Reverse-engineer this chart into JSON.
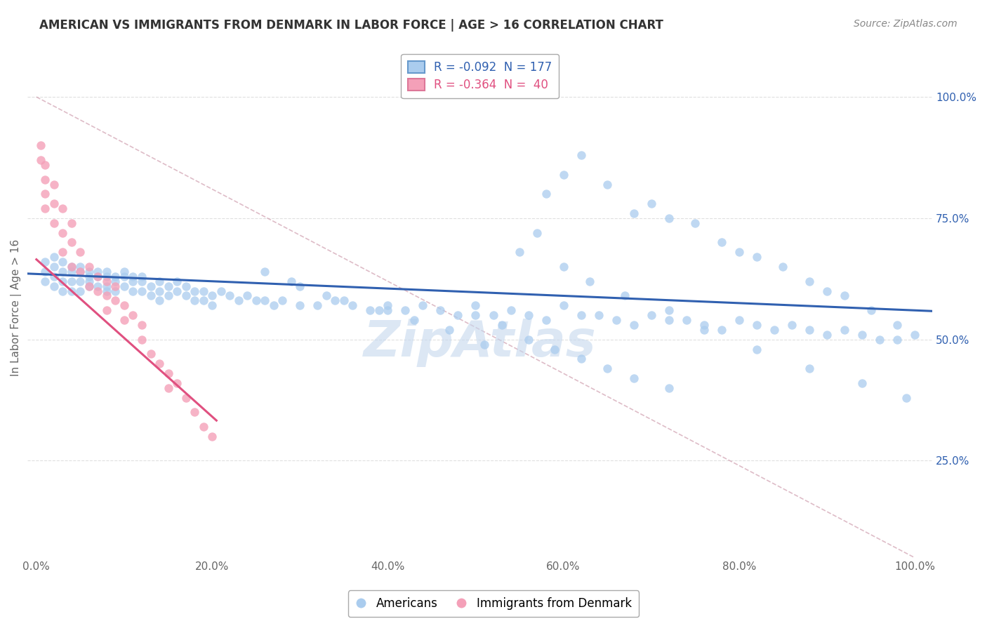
{
  "title": "AMERICAN VS IMMIGRANTS FROM DENMARK IN LABOR FORCE | AGE > 16 CORRELATION CHART",
  "source": "Source: ZipAtlas.com",
  "ylabel_label": "In Labor Force | Age > 16",
  "x_tick_labels": [
    "0.0%",
    "20.0%",
    "40.0%",
    "60.0%",
    "80.0%",
    "100.0%"
  ],
  "x_tick_values": [
    0.0,
    0.2,
    0.4,
    0.6,
    0.8,
    1.0
  ],
  "y_tick_labels": [
    "25.0%",
    "50.0%",
    "75.0%",
    "100.0%"
  ],
  "y_tick_values": [
    0.25,
    0.5,
    0.75,
    1.0
  ],
  "xlim": [
    -0.01,
    1.02
  ],
  "ylim": [
    0.05,
    1.08
  ],
  "blue_color": "#aaccee",
  "pink_color": "#f4a0b8",
  "blue_line_color": "#3060b0",
  "pink_line_color": "#e05080",
  "title_color": "#333333",
  "source_color": "#888888",
  "watermark_color": "#c5d8ee",
  "grid_color": "#dddddd",
  "diag_color": "#d0a0b0",
  "blue_intercept": 0.635,
  "blue_slope": -0.075,
  "pink_intercept": 0.665,
  "pink_slope": -1.62,
  "pink_line_x_start": 0.0,
  "pink_line_x_end": 0.205,
  "blue_scatter_x": [
    0.01,
    0.01,
    0.01,
    0.02,
    0.02,
    0.02,
    0.02,
    0.03,
    0.03,
    0.03,
    0.03,
    0.04,
    0.04,
    0.04,
    0.04,
    0.05,
    0.05,
    0.05,
    0.05,
    0.06,
    0.06,
    0.06,
    0.06,
    0.07,
    0.07,
    0.07,
    0.08,
    0.08,
    0.08,
    0.08,
    0.09,
    0.09,
    0.09,
    0.1,
    0.1,
    0.1,
    0.11,
    0.11,
    0.11,
    0.12,
    0.12,
    0.12,
    0.13,
    0.13,
    0.14,
    0.14,
    0.14,
    0.15,
    0.15,
    0.16,
    0.16,
    0.17,
    0.17,
    0.18,
    0.18,
    0.19,
    0.19,
    0.2,
    0.2,
    0.21,
    0.22,
    0.23,
    0.24,
    0.25,
    0.26,
    0.27,
    0.28,
    0.3,
    0.32,
    0.34,
    0.36,
    0.38,
    0.4,
    0.42,
    0.44,
    0.46,
    0.48,
    0.5,
    0.52,
    0.54,
    0.56,
    0.58,
    0.6,
    0.62,
    0.64,
    0.66,
    0.68,
    0.7,
    0.72,
    0.74,
    0.76,
    0.78,
    0.8,
    0.82,
    0.84,
    0.86,
    0.88,
    0.9,
    0.92,
    0.94,
    0.96,
    0.98,
    1.0,
    0.58,
    0.6,
    0.62,
    0.65,
    0.68,
    0.7,
    0.72,
    0.75,
    0.78,
    0.8,
    0.82,
    0.85,
    0.88,
    0.9,
    0.92,
    0.95,
    0.98,
    0.55,
    0.57,
    0.6,
    0.63,
    0.67,
    0.72,
    0.76,
    0.82,
    0.88,
    0.94,
    0.99,
    0.5,
    0.53,
    0.56,
    0.59,
    0.62,
    0.65,
    0.68,
    0.72,
    0.4,
    0.43,
    0.47,
    0.51,
    0.35,
    0.39,
    0.3,
    0.33,
    0.26,
    0.29
  ],
  "blue_scatter_y": [
    0.64,
    0.66,
    0.62,
    0.65,
    0.63,
    0.67,
    0.61,
    0.64,
    0.62,
    0.66,
    0.6,
    0.64,
    0.62,
    0.65,
    0.6,
    0.64,
    0.62,
    0.65,
    0.6,
    0.63,
    0.62,
    0.64,
    0.61,
    0.63,
    0.61,
    0.64,
    0.63,
    0.61,
    0.64,
    0.6,
    0.63,
    0.62,
    0.6,
    0.63,
    0.61,
    0.64,
    0.62,
    0.6,
    0.63,
    0.62,
    0.6,
    0.63,
    0.61,
    0.59,
    0.62,
    0.6,
    0.58,
    0.61,
    0.59,
    0.62,
    0.6,
    0.61,
    0.59,
    0.6,
    0.58,
    0.6,
    0.58,
    0.59,
    0.57,
    0.6,
    0.59,
    0.58,
    0.59,
    0.58,
    0.58,
    0.57,
    0.58,
    0.57,
    0.57,
    0.58,
    0.57,
    0.56,
    0.57,
    0.56,
    0.57,
    0.56,
    0.55,
    0.57,
    0.55,
    0.56,
    0.55,
    0.54,
    0.57,
    0.55,
    0.55,
    0.54,
    0.53,
    0.55,
    0.54,
    0.54,
    0.53,
    0.52,
    0.54,
    0.53,
    0.52,
    0.53,
    0.52,
    0.51,
    0.52,
    0.51,
    0.5,
    0.5,
    0.51,
    0.8,
    0.84,
    0.88,
    0.82,
    0.76,
    0.78,
    0.75,
    0.74,
    0.7,
    0.68,
    0.67,
    0.65,
    0.62,
    0.6,
    0.59,
    0.56,
    0.53,
    0.68,
    0.72,
    0.65,
    0.62,
    0.59,
    0.56,
    0.52,
    0.48,
    0.44,
    0.41,
    0.38,
    0.55,
    0.53,
    0.5,
    0.48,
    0.46,
    0.44,
    0.42,
    0.4,
    0.56,
    0.54,
    0.52,
    0.49,
    0.58,
    0.56,
    0.61,
    0.59,
    0.64,
    0.62
  ],
  "pink_scatter_x": [
    0.005,
    0.005,
    0.01,
    0.01,
    0.01,
    0.01,
    0.02,
    0.02,
    0.02,
    0.03,
    0.03,
    0.03,
    0.04,
    0.04,
    0.04,
    0.05,
    0.05,
    0.06,
    0.06,
    0.07,
    0.07,
    0.08,
    0.08,
    0.08,
    0.09,
    0.09,
    0.1,
    0.1,
    0.11,
    0.12,
    0.12,
    0.13,
    0.14,
    0.15,
    0.15,
    0.16,
    0.17,
    0.18,
    0.19,
    0.2
  ],
  "pink_scatter_y": [
    0.9,
    0.87,
    0.86,
    0.83,
    0.8,
    0.77,
    0.82,
    0.78,
    0.74,
    0.77,
    0.72,
    0.68,
    0.74,
    0.7,
    0.65,
    0.68,
    0.64,
    0.65,
    0.61,
    0.63,
    0.6,
    0.62,
    0.59,
    0.56,
    0.61,
    0.58,
    0.57,
    0.54,
    0.55,
    0.53,
    0.5,
    0.47,
    0.45,
    0.43,
    0.4,
    0.41,
    0.38,
    0.35,
    0.32,
    0.3
  ],
  "legend_labels_bottom": [
    "Americans",
    "Immigrants from Denmark"
  ]
}
